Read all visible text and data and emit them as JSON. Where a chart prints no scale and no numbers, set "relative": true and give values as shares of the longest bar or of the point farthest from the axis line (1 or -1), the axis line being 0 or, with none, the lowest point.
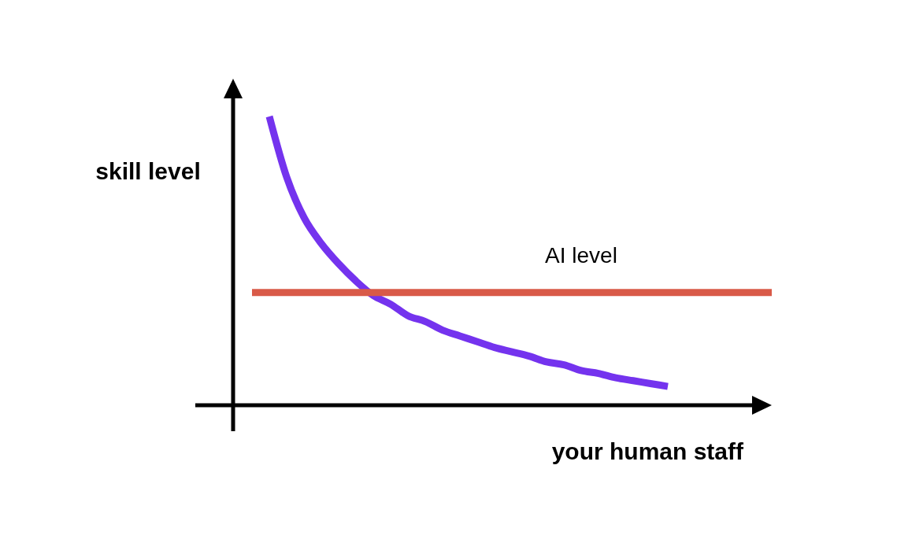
{
  "chart_data": {
    "type": "line",
    "relative": true,
    "xlabel": "your human staff",
    "ylabel": "skill level",
    "categories": [
      null,
      null,
      null,
      null,
      null,
      null,
      null,
      null,
      null,
      null,
      null,
      null,
      null,
      null,
      null,
      null,
      null,
      null,
      null,
      null,
      null,
      null,
      null,
      null,
      null,
      null,
      null,
      null,
      null,
      null,
      null
    ],
    "series": [
      {
        "color": "#7433ee",
        "values": [
          null,
          1.0,
          0.79,
          0.65,
          0.56,
          0.49,
          0.43,
          0.38,
          0.35,
          0.31,
          0.29,
          0.26,
          0.24,
          0.22,
          0.2,
          0.185,
          0.17,
          0.15,
          0.14,
          0.12,
          0.11,
          0.095,
          0.085,
          0.075,
          0.065,
          null,
          null,
          null,
          null,
          null,
          null
        ]
      },
      {
        "name": "AI level",
        "color": "#d95a48",
        "values": [
          0.39,
          0.39,
          0.39,
          0.39,
          0.39,
          0.39,
          0.39,
          0.39,
          0.39,
          0.39,
          0.39,
          0.39,
          0.39,
          0.39,
          0.39,
          0.39,
          0.39,
          0.39,
          0.39,
          0.39,
          0.39,
          0.39,
          0.39,
          0.39,
          0.39,
          0.39,
          0.39,
          0.39,
          0.39,
          0.39,
          0.39
        ]
      }
    ]
  }
}
